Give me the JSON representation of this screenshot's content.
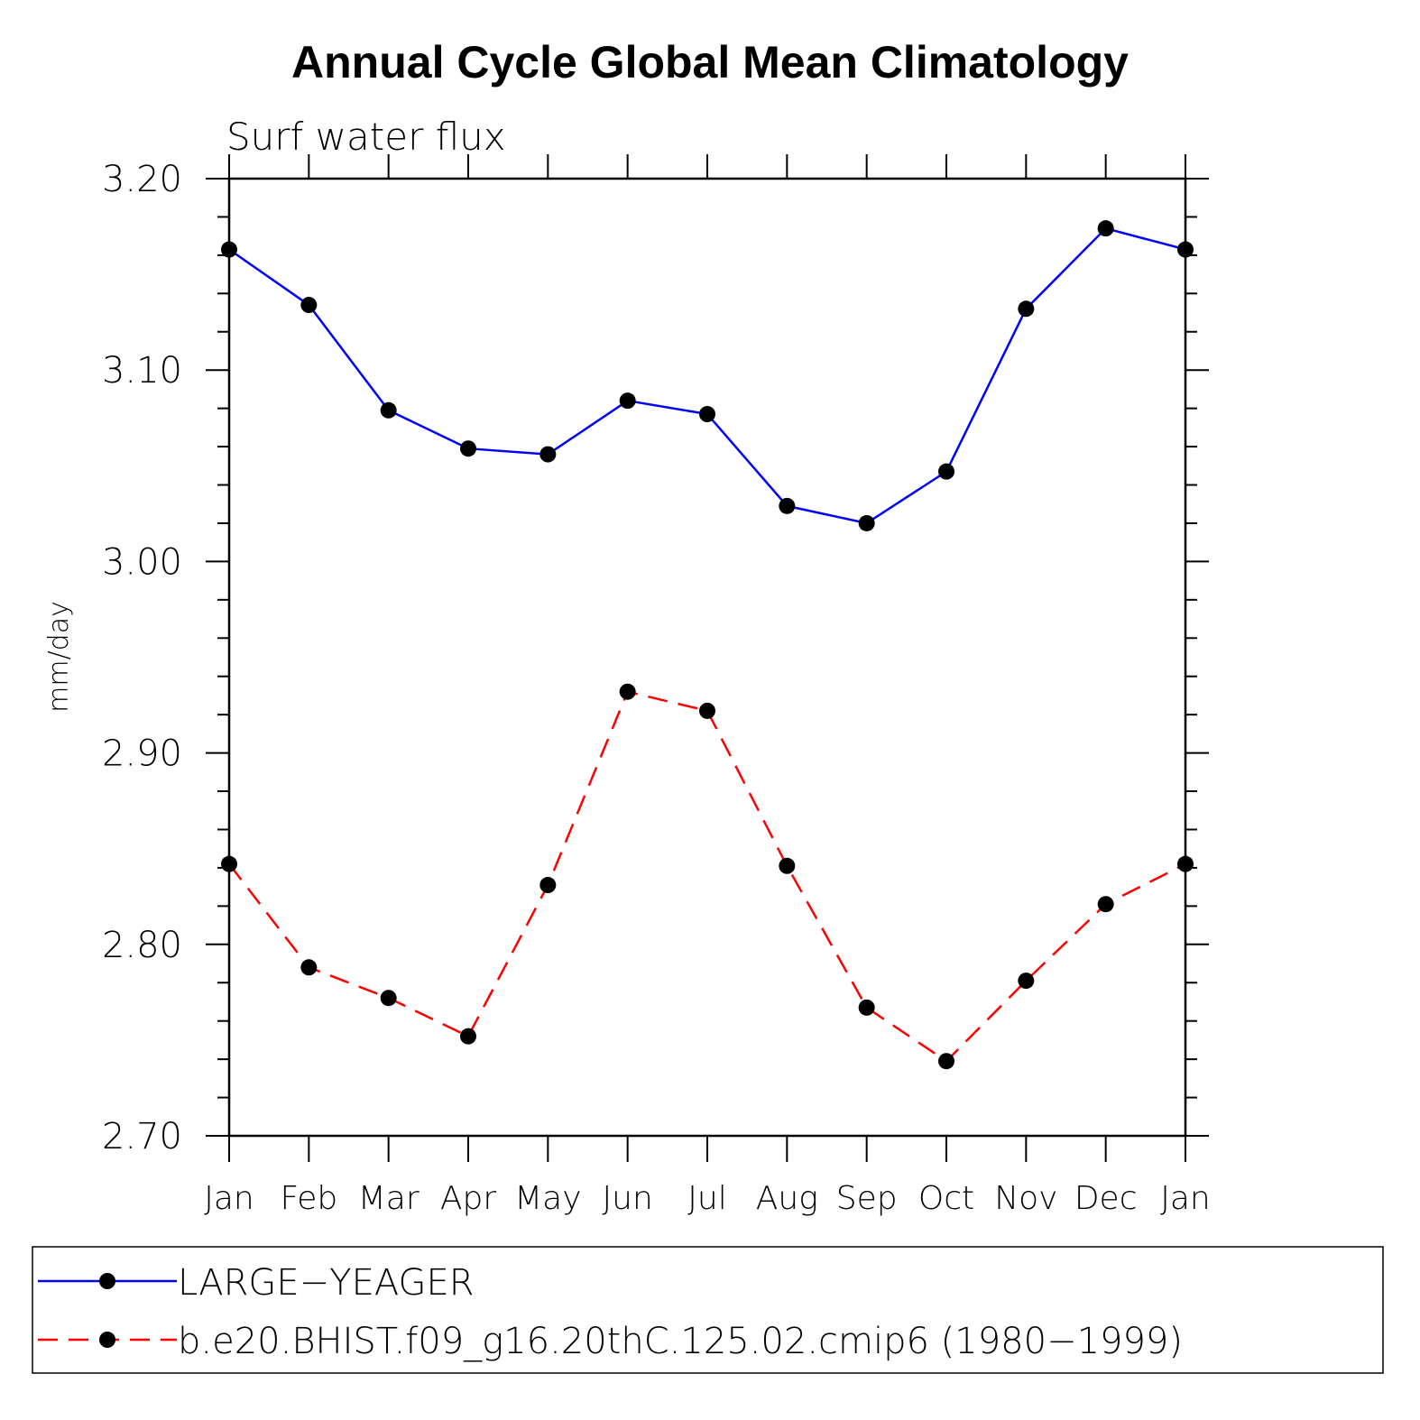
{
  "chart_data": {
    "type": "line",
    "title": "Annual Cycle Global Mean Climatology",
    "subtitle": "Surf water flux",
    "xlabel": "",
    "ylabel": "mm/day",
    "categories": [
      "Jan",
      "Feb",
      "Mar",
      "Apr",
      "May",
      "Jun",
      "Jul",
      "Aug",
      "Sep",
      "Oct",
      "Nov",
      "Dec",
      "Jan"
    ],
    "ylim": [
      2.7,
      3.2
    ],
    "yticks": [
      "2.70",
      "2.80",
      "2.90",
      "3.00",
      "3.10",
      "3.20"
    ],
    "grid": false,
    "legend_position": "bottom",
    "series": [
      {
        "name": "LARGE−YEAGER",
        "color": "#0000ff",
        "line_style": "solid",
        "marker": "filled-circle",
        "values": [
          3.163,
          3.134,
          3.079,
          3.059,
          3.056,
          3.084,
          3.077,
          3.029,
          3.02,
          3.047,
          3.132,
          3.174,
          3.163
        ]
      },
      {
        "name": "b.e20.BHIST.f09_g16.20thC.125.02.cmip6 (1980−1999)",
        "color": "#ff0000",
        "line_style": "dashed",
        "marker": "filled-circle",
        "values": [
          2.842,
          2.788,
          2.772,
          2.752,
          2.831,
          2.932,
          2.922,
          2.841,
          2.767,
          2.739,
          2.781,
          2.821,
          2.842
        ]
      }
    ]
  }
}
